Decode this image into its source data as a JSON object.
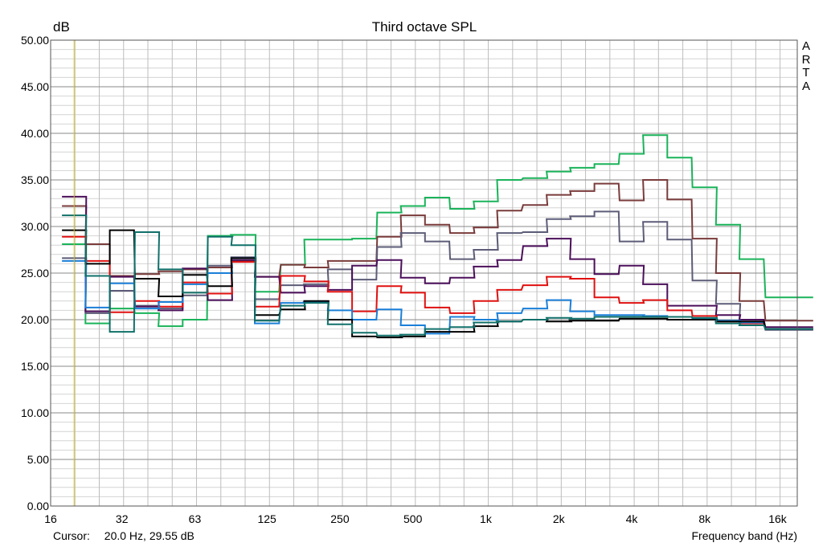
{
  "chart_data": {
    "type": "line",
    "title": "Third octave SPL",
    "ylabel": "dB",
    "xlabel": "Frequency band (Hz)",
    "brand": "ARTA",
    "cursor": {
      "label": "Cursor:",
      "value": "20.0 Hz, 29.55 dB",
      "freq": 20
    },
    "ylim": [
      0,
      50
    ],
    "x_scale": "log",
    "xlim": [
      16,
      22000
    ],
    "grid": true,
    "y_ticks": [
      "0.00",
      "5.00",
      "10.00",
      "15.00",
      "20.00",
      "25.00",
      "30.00",
      "35.00",
      "40.00",
      "45.00",
      "50.00"
    ],
    "x_ticks": [
      {
        "v": 16,
        "label": "16"
      },
      {
        "v": 31.5,
        "label": "32"
      },
      {
        "v": 63,
        "label": "63"
      },
      {
        "v": 125,
        "label": "125"
      },
      {
        "v": 250,
        "label": "250"
      },
      {
        "v": 500,
        "label": "500"
      },
      {
        "v": 1000,
        "label": "1k"
      },
      {
        "v": 2000,
        "label": "2k"
      },
      {
        "v": 4000,
        "label": "4k"
      },
      {
        "v": 8000,
        "label": "8k"
      },
      {
        "v": 16000,
        "label": "16k"
      }
    ],
    "bands": [
      20,
      25,
      31.5,
      40,
      50,
      63,
      80,
      100,
      125,
      160,
      200,
      250,
      315,
      400,
      500,
      630,
      800,
      1000,
      1250,
      1600,
      2000,
      2500,
      3150,
      4000,
      5000,
      6300,
      8000,
      10000,
      12500,
      16000,
      20000
    ],
    "series": [
      {
        "color": "#1ab35a",
        "values": [
          28.1,
          19.6,
          21.2,
          20.7,
          19.3,
          20.0,
          29.0,
          29.1,
          23.0,
          25.9,
          28.6,
          28.6,
          28.7,
          31.5,
          32.2,
          33.1,
          31.9,
          32.7,
          35.0,
          35.2,
          35.9,
          36.3,
          36.7,
          37.8,
          39.8,
          37.4,
          34.2,
          30.2,
          26.5,
          22.4,
          22.4
        ]
      },
      {
        "color": "#7a3b3b",
        "values": [
          32.2,
          28.1,
          24.7,
          24.9,
          25.2,
          25.4,
          25.6,
          26.3,
          24.6,
          25.9,
          25.6,
          26.3,
          26.3,
          28.9,
          31.2,
          30.2,
          29.3,
          29.9,
          31.7,
          32.3,
          33.4,
          33.8,
          34.6,
          32.8,
          35.0,
          32.9,
          28.7,
          25.0,
          22.0,
          19.9,
          19.9
        ]
      },
      {
        "color": "#5c5c78",
        "values": [
          26.6,
          20.7,
          23.1,
          21.5,
          21.2,
          22.6,
          25.8,
          26.7,
          22.2,
          23.7,
          23.8,
          25.4,
          24.3,
          27.8,
          29.3,
          28.4,
          26.5,
          27.5,
          29.3,
          29.4,
          30.8,
          31.1,
          31.6,
          28.4,
          30.5,
          28.6,
          24.2,
          21.7,
          20.0,
          18.9,
          18.9
        ]
      },
      {
        "color": "#4b0f5a",
        "values": [
          33.2,
          20.9,
          24.6,
          21.4,
          21.0,
          25.5,
          22.1,
          26.4,
          24.6,
          22.9,
          23.6,
          23.2,
          25.8,
          26.4,
          24.5,
          23.9,
          24.5,
          25.7,
          26.4,
          27.9,
          28.7,
          26.5,
          24.9,
          25.8,
          23.8,
          21.5,
          21.5,
          20.5,
          20.0,
          19.2,
          19.2
        ]
      },
      {
        "color": "#e01010",
        "values": [
          28.9,
          26.3,
          20.8,
          22.0,
          21.4,
          24.0,
          22.8,
          26.2,
          21.4,
          24.7,
          24.1,
          23.0,
          20.9,
          23.6,
          22.9,
          21.3,
          20.7,
          22.0,
          23.2,
          23.7,
          24.6,
          24.4,
          22.4,
          21.8,
          22.1,
          21.0,
          20.4,
          19.8,
          19.6,
          19.0,
          19.0
        ]
      },
      {
        "color": "#1a7fd8",
        "values": [
          26.3,
          21.3,
          23.9,
          21.2,
          21.9,
          23.8,
          25.0,
          26.6,
          19.6,
          21.8,
          21.9,
          21.0,
          20.0,
          21.1,
          19.4,
          18.5,
          20.3,
          20.0,
          20.7,
          21.2,
          22.1,
          20.9,
          20.5,
          20.5,
          20.4,
          20.3,
          20.1,
          19.9,
          19.7,
          19.0,
          19.0
        ]
      },
      {
        "color": "#000000",
        "values": [
          29.6,
          26.0,
          29.6,
          24.4,
          22.5,
          24.8,
          23.6,
          26.6,
          20.5,
          21.1,
          22.0,
          20.0,
          18.2,
          18.1,
          18.2,
          18.7,
          18.7,
          19.3,
          19.8,
          20.0,
          19.8,
          19.9,
          19.9,
          20.1,
          20.1,
          20.0,
          20.0,
          19.8,
          19.8,
          19.0,
          19.0
        ]
      },
      {
        "color": "#10706a",
        "values": [
          31.2,
          24.7,
          18.7,
          29.4,
          25.4,
          22.9,
          28.9,
          28.0,
          19.9,
          21.5,
          21.8,
          19.5,
          18.6,
          18.3,
          18.4,
          19.0,
          19.2,
          19.7,
          19.8,
          20.0,
          20.2,
          20.1,
          20.3,
          20.3,
          20.3,
          20.3,
          20.2,
          19.6,
          19.4,
          19.0,
          19.0
        ]
      }
    ]
  }
}
